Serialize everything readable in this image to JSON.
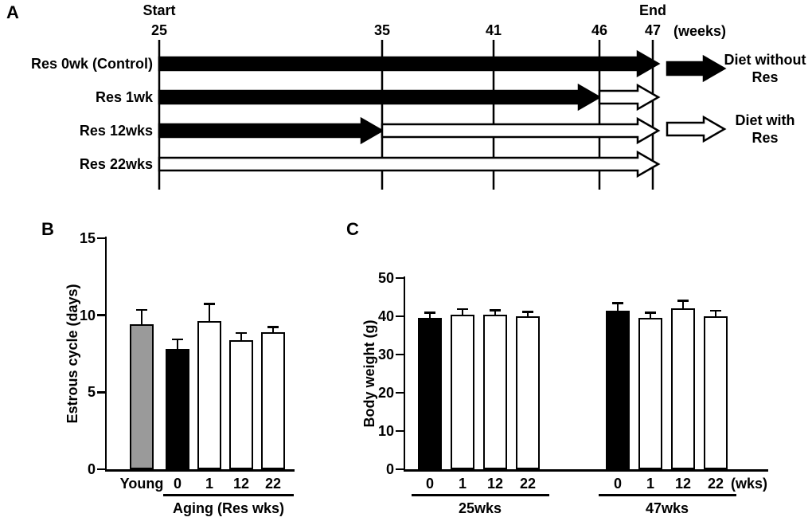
{
  "figure": {
    "panel_a": {
      "label": "A",
      "start_label": "Start",
      "end_label": "End",
      "weeks_label": "(weeks)",
      "ticks": [
        "25",
        "35",
        "41",
        "46",
        "47"
      ],
      "rows": [
        {
          "label": "Res 0wk (Control)",
          "segments": [
            {
              "type": "black",
              "from": "25",
              "to": "47"
            }
          ]
        },
        {
          "label": "Res 1wk",
          "segments": [
            {
              "type": "black",
              "from": "25",
              "to": "46"
            },
            {
              "type": "white",
              "from": "46",
              "to": "47"
            }
          ]
        },
        {
          "label": "Res 12wks",
          "segments": [
            {
              "type": "black",
              "from": "25",
              "to": "35"
            },
            {
              "type": "white",
              "from": "35",
              "to": "47"
            }
          ]
        },
        {
          "label": "Res 22wks",
          "segments": [
            {
              "type": "white",
              "from": "25",
              "to": "47"
            }
          ]
        }
      ],
      "legend": [
        {
          "type": "black",
          "label": "Diet without Res"
        },
        {
          "type": "white",
          "label": "Diet with Res"
        }
      ]
    },
    "panel_b": {
      "label": "B"
    },
    "panel_c": {
      "label": "C"
    }
  },
  "chart_data": [
    {
      "id": "estrous",
      "panel": "B",
      "type": "bar",
      "title": "",
      "ylabel": "Estrous cycle (days)",
      "ylim": [
        0,
        15
      ],
      "yticks": [
        0,
        5,
        10,
        15
      ],
      "categories": [
        "Young",
        "0",
        "1",
        "12",
        "22"
      ],
      "values": [
        9.4,
        7.8,
        9.6,
        8.4,
        8.9
      ],
      "errors": [
        1.0,
        0.7,
        1.2,
        0.5,
        0.4
      ],
      "bar_colors": [
        "#9a9a9a",
        "#000000",
        "#ffffff",
        "#ffffff",
        "#ffffff"
      ],
      "group_label": "Aging (Res wks)",
      "grid": false
    },
    {
      "id": "bodyweight",
      "panel": "C",
      "type": "bar",
      "title": "",
      "ylabel": "Body weight (g)",
      "ylim": [
        0,
        50
      ],
      "yticks": [
        0,
        10,
        20,
        30,
        40,
        50
      ],
      "categories": [
        "0",
        "1",
        "12",
        "22",
        "0",
        "1",
        "12",
        "22"
      ],
      "values": [
        39.5,
        40.5,
        40.5,
        40.0,
        41.5,
        39.5,
        42.0,
        40.0
      ],
      "errors": [
        1.7,
        1.6,
        1.3,
        1.4,
        2.2,
        1.7,
        2.3,
        1.7
      ],
      "bar_colors": [
        "#000000",
        "#ffffff",
        "#ffffff",
        "#ffffff",
        "#000000",
        "#ffffff",
        "#ffffff",
        "#ffffff"
      ],
      "groups": [
        {
          "label": "25wks"
        },
        {
          "label": "47wks"
        }
      ],
      "x_suffix": "(wks)",
      "grid": false
    }
  ]
}
